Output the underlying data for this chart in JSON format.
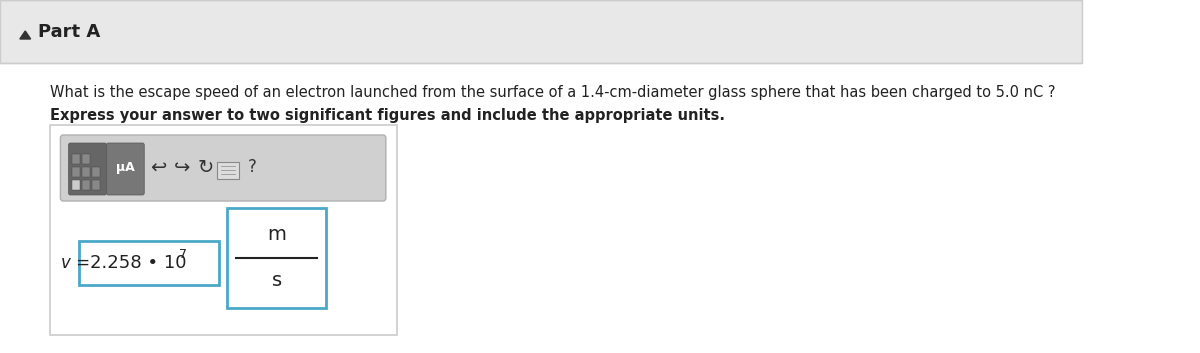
{
  "bg_color": "#f5f5f5",
  "white_bg": "#ffffff",
  "part_a_text": "Part A",
  "triangle_color": "#333333",
  "question_text": "What is the escape speed of an electron launched from the surface of a 1.4-cm-diameter glass sphere that has been charged to 5.0 nC ?",
  "bold_text": "Express your answer to two significant figures and include the appropriate units.",
  "v_label": "v =",
  "answer_value": "2.258 • 10",
  "exponent": "7",
  "unit_top": "m",
  "unit_bottom": "s",
  "toolbar_bg": "#d0d0d0",
  "toolbar_border": "#b0b0b0",
  "answer_box_border": "#4aa8c8",
  "unit_box_border": "#4aa8c8",
  "outer_box_bg": "#ffffff",
  "outer_box_border": "#cccccc",
  "header_bg": "#e8e8e8",
  "header_border": "#cccccc"
}
